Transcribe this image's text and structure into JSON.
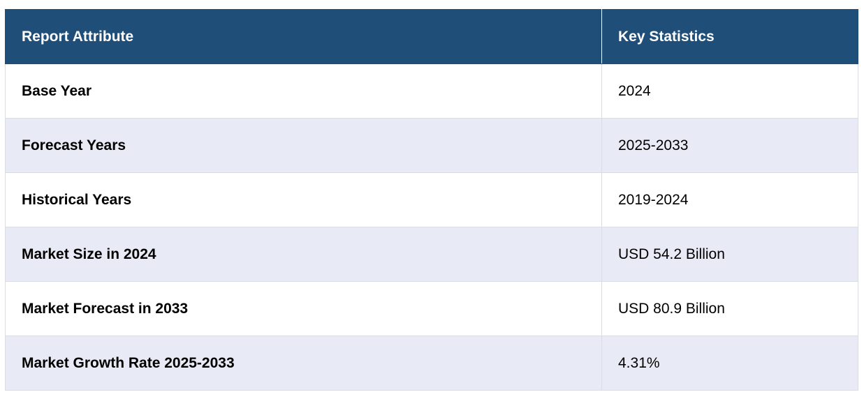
{
  "table": {
    "headers": [
      "Report Attribute",
      "Key Statistics"
    ],
    "rows": [
      {
        "attribute": "Base Year",
        "value": "2024"
      },
      {
        "attribute": "Forecast Years",
        "value": "2025-2033"
      },
      {
        "attribute": "Historical Years",
        "value": "2019-2024"
      },
      {
        "attribute": "Market Size in 2024",
        "value": "USD 54.2 Billion"
      },
      {
        "attribute": "Market Forecast in 2033",
        "value": "USD 80.9 Billion"
      },
      {
        "attribute": "Market Growth Rate 2025-2033",
        "value": "4.31%"
      }
    ]
  },
  "colors": {
    "header_bg": "#1f4e79",
    "header_text": "#ffffff",
    "row_alt_bg": "#e8eaf6",
    "row_bg": "#ffffff"
  }
}
